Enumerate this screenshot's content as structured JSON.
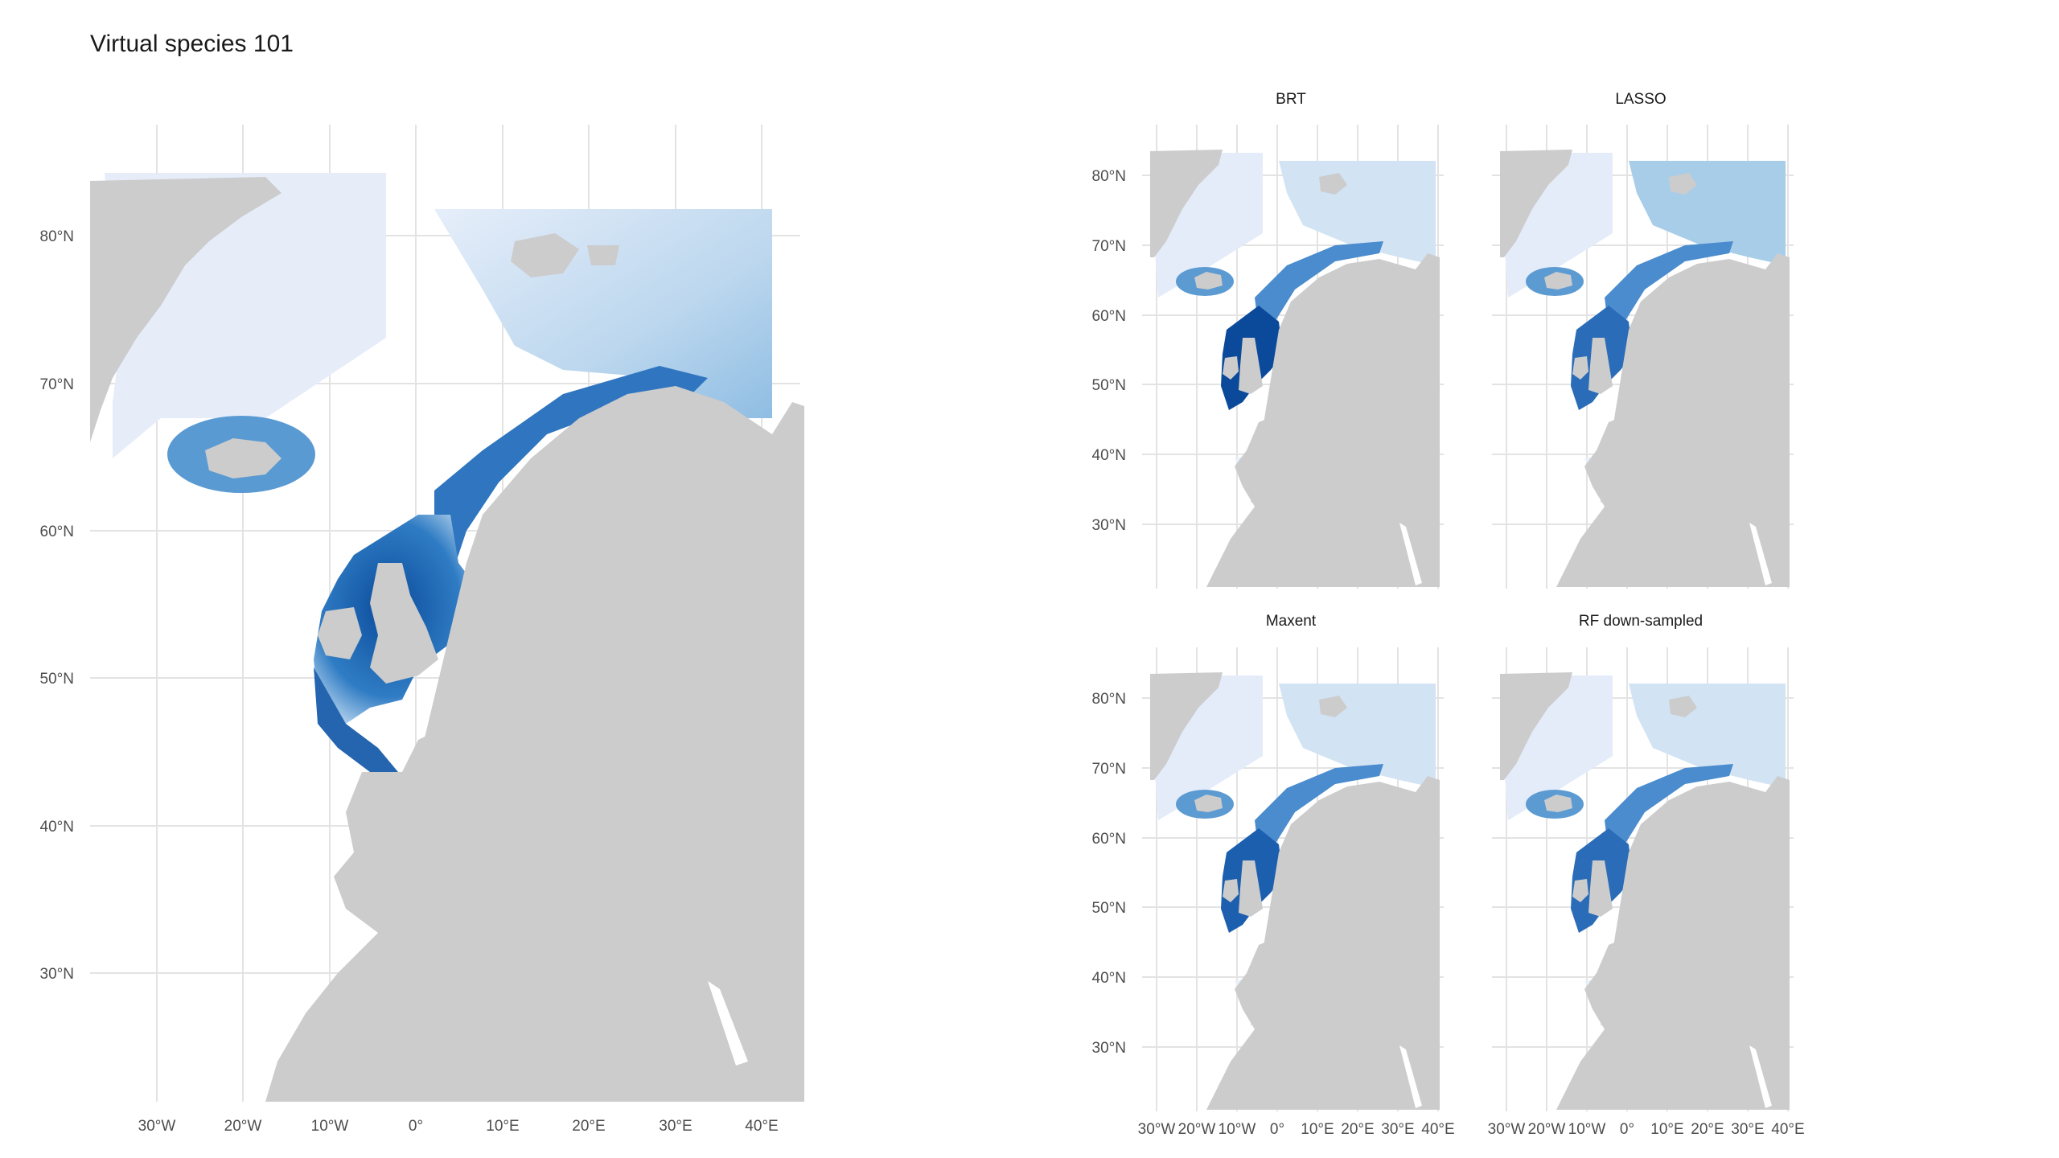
{
  "title": "Virtual species 101",
  "colors": {
    "land": "#cccccc",
    "grid": "#e3e3e3",
    "ocean_low": "#e4ecf9",
    "ocean_mid": "#86b5df",
    "ocean_high": "#0d4f9f"
  },
  "main_map": {
    "lat_labels": [
      "80°N",
      "70°N",
      "60°N",
      "50°N",
      "40°N",
      "30°N"
    ],
    "lon_labels": [
      "30°W",
      "20°W",
      "10°W",
      "0°",
      "10°E",
      "20°E",
      "30°E",
      "40°E"
    ]
  },
  "facets": [
    {
      "title": "BRT"
    },
    {
      "title": "LASSO"
    },
    {
      "title": "Maxent"
    },
    {
      "title": "RF down-sampled"
    }
  ],
  "facet_lat_labels": [
    "80°N",
    "70°N",
    "60°N",
    "50°N",
    "40°N",
    "30°N"
  ],
  "facet_lon_labels": [
    "30°W",
    "20°W",
    "10°W",
    "0°",
    "10°E",
    "20°E",
    "30°E",
    "40°E"
  ]
}
